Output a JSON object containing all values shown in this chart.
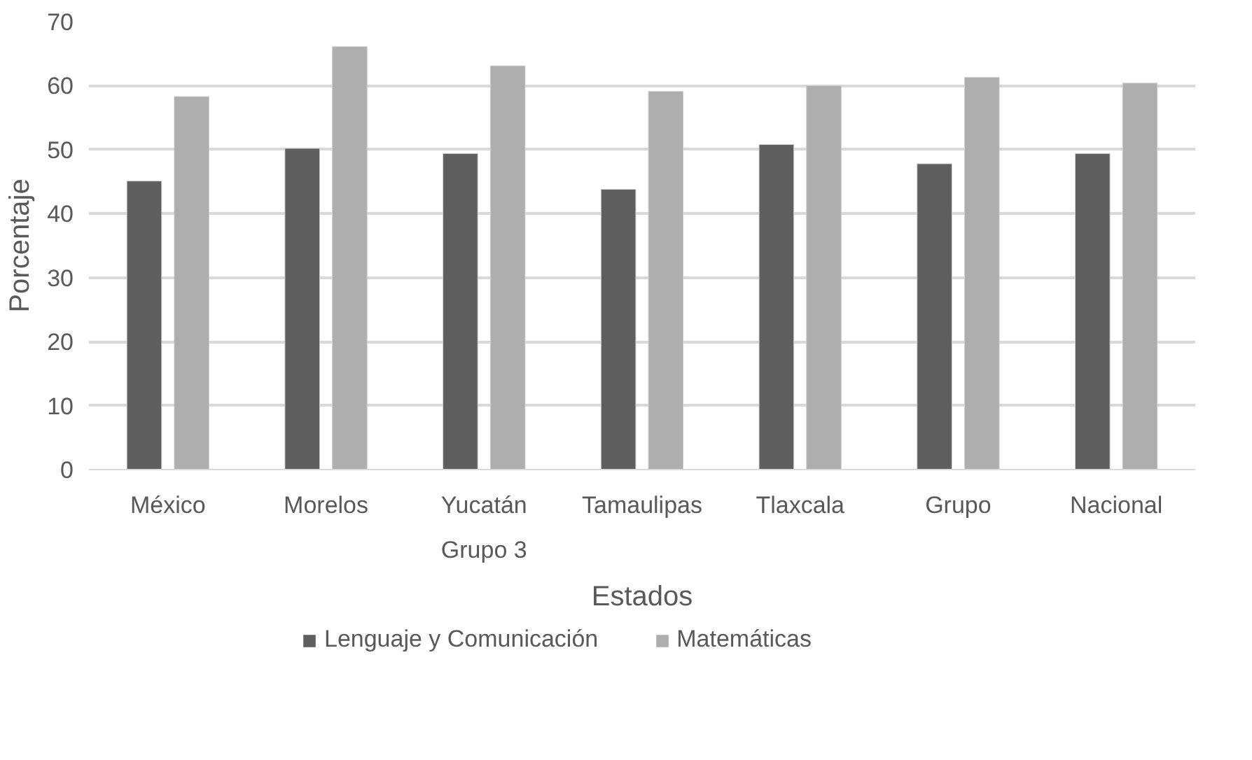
{
  "chart_data": {
    "type": "bar",
    "xlabel": "Estados",
    "ylabel": "Porcentaje",
    "categories": [
      "México",
      "Morelos",
      "Yucatán",
      "Tamaulipas",
      "Tlaxcala",
      "Grupo",
      "Nacional"
    ],
    "series": [
      {
        "name": "Lenguaje y Comunicación",
        "color": "#5f5f5f",
        "values": [
          45.1,
          50.2,
          49.4,
          43.8,
          50.8,
          47.8,
          49.4
        ]
      },
      {
        "name": "Matemáticas",
        "color": "#aeaeae",
        "values": [
          58.3,
          66.1,
          63.1,
          59.1,
          60.0,
          61.3,
          60.4
        ]
      }
    ],
    "annotations": [
      "Grupo 3"
    ],
    "ylim": [
      0,
      70
    ],
    "yticks": [
      0,
      10,
      20,
      30,
      40,
      50,
      60,
      70
    ],
    "grid": "y",
    "legend": "bottom"
  }
}
